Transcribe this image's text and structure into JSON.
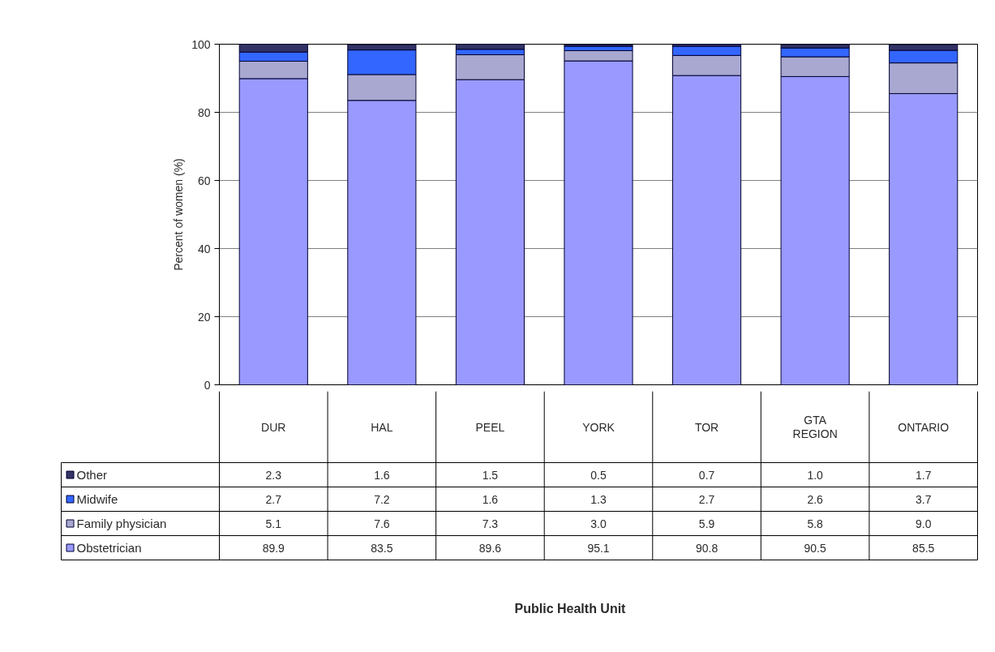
{
  "chart_data": {
    "type": "bar",
    "stacked": true,
    "categories": [
      "DUR",
      "HAL",
      "PEEL",
      "YORK",
      "TOR",
      "GTA REGION",
      "ONTARIO"
    ],
    "series": [
      {
        "name": "Obstetrician",
        "color": "#9999ff",
        "values": [
          89.9,
          83.5,
          89.6,
          95.1,
          90.8,
          90.5,
          85.5
        ],
        "value_labels": [
          "89.9",
          "83.5",
          "89.6",
          "95.1",
          "90.8",
          "90.5",
          "85.5"
        ]
      },
      {
        "name": "Family physician",
        "color": "#a8a8d0",
        "values": [
          5.1,
          7.6,
          7.3,
          3.0,
          5.9,
          5.8,
          9.0
        ],
        "value_labels": [
          "5.1",
          "7.6",
          "7.3",
          "3.0",
          "5.9",
          "5.8",
          "9.0"
        ]
      },
      {
        "name": "Midwife",
        "color": "#3366ff",
        "values": [
          2.7,
          7.2,
          1.6,
          1.3,
          2.7,
          2.6,
          3.7
        ],
        "value_labels": [
          "2.7",
          "7.2",
          "1.6",
          "1.3",
          "2.7",
          "2.6",
          "3.7"
        ]
      },
      {
        "name": "Other",
        "color": "#333366",
        "values": [
          2.3,
          1.6,
          1.5,
          0.5,
          0.7,
          1.0,
          1.7
        ],
        "value_labels": [
          "2.3",
          "1.6",
          "1.5",
          "0.5",
          "0.7",
          "1.0",
          "1.7"
        ]
      }
    ],
    "ylim": [
      0,
      100
    ],
    "yticks": [
      0,
      20,
      40,
      60,
      80,
      100
    ],
    "ylabel": "Percent of women (%)",
    "annotations": [
      "Public Health Unit"
    ],
    "grid": "y",
    "legend": "bottom left"
  }
}
